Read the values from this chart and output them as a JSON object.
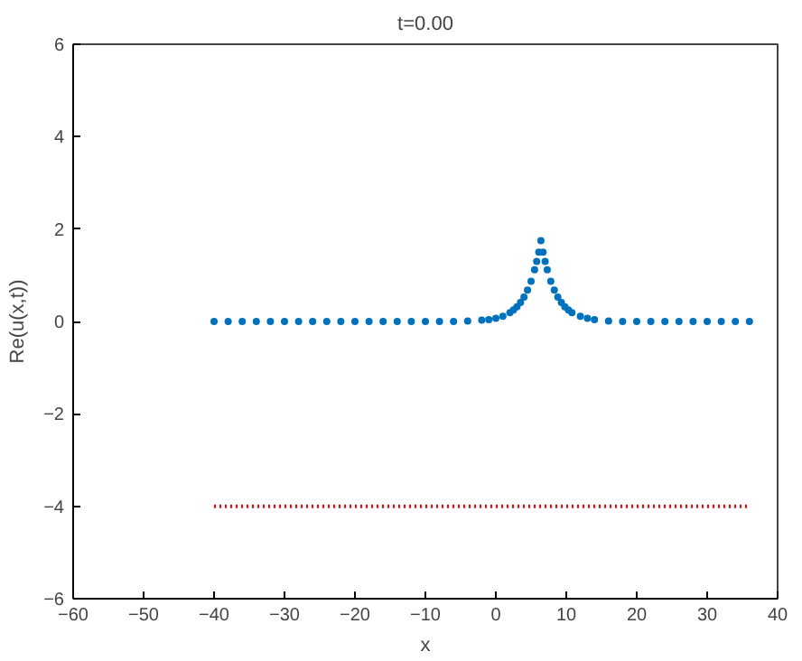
{
  "chart_data": {
    "type": "scatter",
    "title": "t=0.00",
    "xlabel": "x",
    "ylabel": "Re(u(x,t))",
    "xlim": [
      -60,
      40
    ],
    "ylim": [
      -6,
      6
    ],
    "xticks": [
      -60,
      -50,
      -40,
      -30,
      -20,
      -10,
      0,
      10,
      20,
      30,
      40
    ],
    "yticks": [
      -6,
      -4,
      -2,
      0,
      2,
      4,
      6
    ],
    "grid": false,
    "series": [
      {
        "marker": "circle",
        "color": "#0072bd",
        "x": [
          -40,
          -38,
          -36,
          -34,
          -32,
          -30,
          -28,
          -26,
          -24,
          -22,
          -20,
          -18,
          -16,
          -14,
          -12,
          -10,
          -8,
          -6,
          -4,
          -2,
          -1,
          0,
          1,
          2,
          2.5,
          3,
          3.5,
          4,
          4.5,
          5,
          5.5,
          5.8,
          6.1,
          6.4,
          6.7,
          7,
          7.3,
          7.8,
          8.3,
          8.8,
          9.3,
          9.8,
          10.3,
          10.8,
          12,
          13,
          14,
          16,
          18,
          20,
          22,
          24,
          26,
          28,
          30,
          32,
          34,
          36
        ],
        "values": [
          0,
          0,
          0,
          0,
          0,
          0,
          0,
          0,
          0,
          0,
          0,
          0,
          0,
          0,
          0,
          0,
          0,
          0,
          0.01,
          0.03,
          0.04,
          0.07,
          0.11,
          0.19,
          0.25,
          0.32,
          0.41,
          0.53,
          0.68,
          0.87,
          1.12,
          1.3,
          1.5,
          1.75,
          1.5,
          1.3,
          1.12,
          0.87,
          0.68,
          0.53,
          0.41,
          0.32,
          0.25,
          0.19,
          0.11,
          0.07,
          0.04,
          0.01,
          0,
          0,
          0,
          0,
          0,
          0,
          0,
          0,
          0,
          0
        ]
      },
      {
        "type": "line",
        "line_style": "dotted",
        "color": "#ff0000",
        "x": [
          -40,
          36
        ],
        "values": [
          -4,
          -4
        ]
      }
    ]
  }
}
